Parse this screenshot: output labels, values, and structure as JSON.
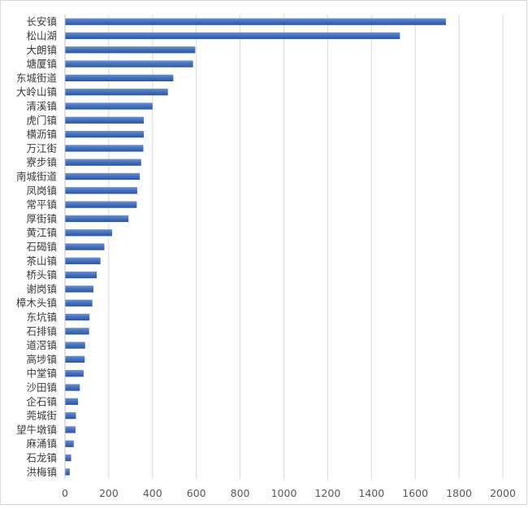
{
  "chart_data": {
    "type": "bar",
    "orientation": "horizontal",
    "categories": [
      "长安镇",
      "松山湖",
      "大朗镇",
      "塘厦镇",
      "东城街道",
      "大岭山镇",
      "清溪镇",
      "虎门镇",
      "横沥镇",
      "万江街",
      "寮步镇",
      "南城街道",
      "凤岗镇",
      "常平镇",
      "厚街镇",
      "黄江镇",
      "石碣镇",
      "茶山镇",
      "桥头镇",
      "谢岗镇",
      "樟木头镇",
      "东坑镇",
      "石排镇",
      "道滘镇",
      "高埗镇",
      "中堂镇",
      "沙田镇",
      "企石镇",
      "莞城街",
      "望牛墩镇",
      "麻涌镇",
      "石龙镇",
      "洪梅镇"
    ],
    "values": [
      1740,
      1530,
      595,
      585,
      495,
      470,
      400,
      360,
      360,
      358,
      348,
      342,
      330,
      328,
      290,
      215,
      180,
      162,
      145,
      130,
      125,
      112,
      110,
      92,
      90,
      85,
      68,
      60,
      50,
      48,
      40,
      28,
      22
    ],
    "xlim": [
      0,
      2000
    ],
    "xticks": [
      "0",
      "200",
      "400",
      "600",
      "800",
      "1000",
      "1200",
      "1400",
      "1600",
      "1800",
      "2000"
    ],
    "title": "",
    "xlabel": "",
    "ylabel": "",
    "grid": true,
    "legend": "none",
    "colors": {
      "bar": "#4472c4",
      "bar_dark": "#2f5597",
      "grid": "#d9d9d9"
    }
  }
}
